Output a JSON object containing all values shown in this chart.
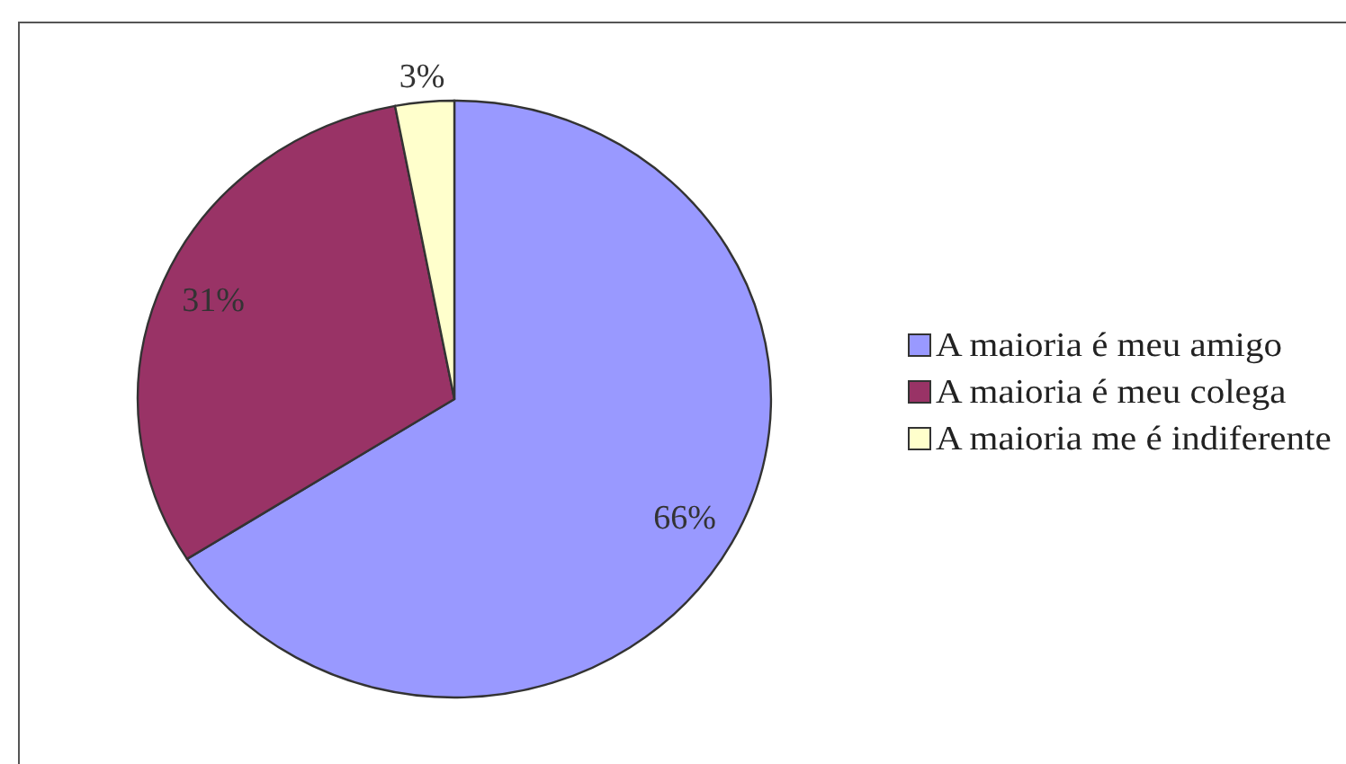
{
  "chart_data": {
    "type": "pie",
    "categories": [
      "A maioria é meu amigo",
      "A maioria é meu colega",
      "A maioria me é indiferente"
    ],
    "values": [
      66,
      31,
      3
    ],
    "colors": [
      "#9999ff",
      "#993366",
      "#ffffcc"
    ],
    "value_labels": [
      "66%",
      "31%",
      "3%"
    ],
    "legend": "right"
  }
}
